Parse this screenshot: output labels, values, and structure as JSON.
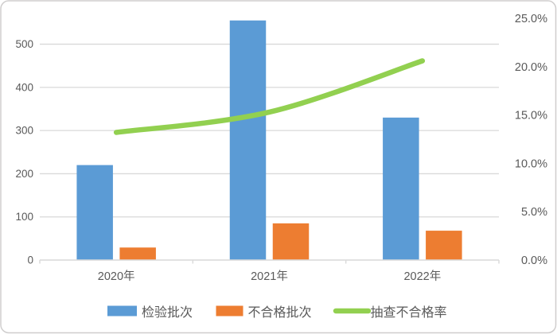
{
  "chart_data": {
    "type": "combo",
    "title": "",
    "categories": [
      "2020年",
      "2021年",
      "2022年"
    ],
    "series": [
      {
        "key": "inspected-batches",
        "name": "检验批次",
        "type": "bar",
        "axis": "left",
        "color": "#5B9BD5",
        "values": [
          220,
          555,
          330
        ]
      },
      {
        "key": "unqualified-batches",
        "name": "不合格批次",
        "type": "bar",
        "axis": "left",
        "color": "#ED7D31",
        "values": [
          29,
          85,
          68
        ]
      },
      {
        "key": "spot-check-failure-rate",
        "name": "抽查不合格率",
        "type": "line",
        "axis": "right",
        "color": "#92D050",
        "values": [
          13.2,
          15.3,
          20.6
        ],
        "unit": "%"
      }
    ],
    "left_axis": {
      "min": 0,
      "max": 560,
      "tick_step": 100,
      "tick_labels": [
        "0",
        "100",
        "200",
        "300",
        "400",
        "500"
      ]
    },
    "right_axis": {
      "min": 0,
      "max": 25,
      "tick_step": 5,
      "tick_labels": [
        "0.0%",
        "5.0%",
        "10.0%",
        "15.0%",
        "20.0%",
        "25.0%"
      ]
    },
    "legend_position": "bottom",
    "grid": "horizontal"
  },
  "style": {
    "border_color": "#D0CECE",
    "grid_color": "#D9D9D9",
    "axis_line_color": "#D9D9D9",
    "label_color": "#595959",
    "background": "#FFFFFF"
  }
}
